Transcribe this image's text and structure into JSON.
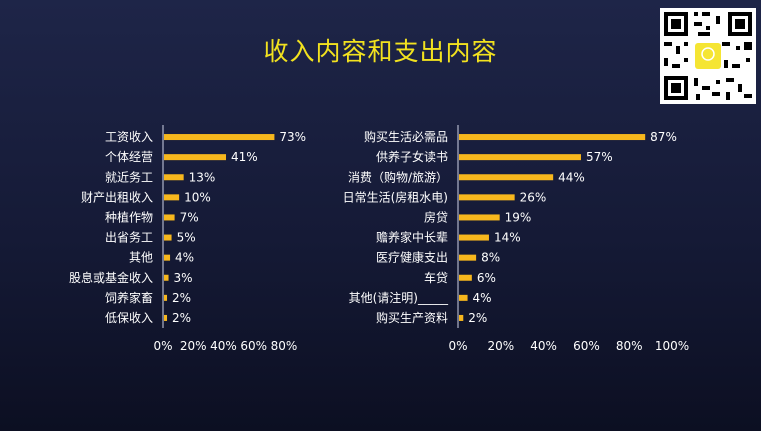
{
  "title": "收入内容和支出内容",
  "colors": {
    "bar": "#f7b71d",
    "axis": "#cfd3e6",
    "text": "#ffffff",
    "title": "#f2e21f"
  },
  "qr_code": {
    "icon": "qr-code-icon"
  },
  "chart_data": [
    {
      "type": "bar",
      "orientation": "horizontal",
      "title": "",
      "xlabel": "",
      "ylabel": "",
      "categories": [
        "工资收入",
        "个体经营",
        "就近务工",
        "财产出租收入",
        "种植作物",
        "出省务工",
        "其他",
        "股息或基金收入",
        "饲养家畜",
        "低保收入"
      ],
      "values": [
        73,
        41,
        13,
        10,
        7,
        5,
        4,
        3,
        2,
        2
      ],
      "value_labels": [
        "73%",
        "41%",
        "13%",
        "10%",
        "7%",
        "5%",
        "4%",
        "3%",
        "2%",
        "2%"
      ],
      "xlim": [
        0,
        80
      ],
      "xticks": [
        "0%",
        "20%",
        "40%",
        "60%",
        "80%"
      ],
      "grid": false
    },
    {
      "type": "bar",
      "orientation": "horizontal",
      "title": "",
      "xlabel": "",
      "ylabel": "",
      "categories": [
        "购买生活必需品",
        "供养子女读书",
        "消费（购物/旅游）",
        "日常生活(房租水电)",
        "房贷",
        "赡养家中长辈",
        "医疗健康支出",
        "车贷",
        "其他(请注明)_____",
        "购买生产资料"
      ],
      "values": [
        87,
        57,
        44,
        26,
        19,
        14,
        8,
        6,
        4,
        2
      ],
      "value_labels": [
        "87%",
        "57%",
        "44%",
        "26%",
        "19%",
        "14%",
        "8%",
        "6%",
        "4%",
        "2%"
      ],
      "xlim": [
        0,
        100
      ],
      "xticks": [
        "0%",
        "20%",
        "40%",
        "60%",
        "80%",
        "100%"
      ],
      "grid": false
    }
  ]
}
